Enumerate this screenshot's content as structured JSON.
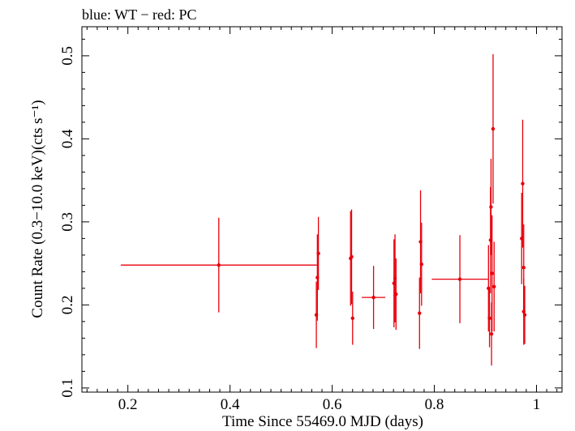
{
  "chart_data": {
    "type": "scatter",
    "title": "blue: WT − red: PC",
    "xlabel": "Time Since 55469.0 MJD (days)",
    "ylabel": "Count Rate (0.3−10.0 keV)(cts s⁻¹)",
    "xlim": [
      0.11,
      1.05
    ],
    "ylim": [
      0.095,
      0.535
    ],
    "xticks": [
      "0.2",
      "0.4",
      "0.6",
      "0.8",
      "1"
    ],
    "yticks": [
      "0.1",
      "0.2",
      "0.3",
      "0.4",
      "0.5"
    ],
    "grid": false,
    "series": [
      {
        "color": "#e8000b",
        "points": [
          {
            "x": 0.378,
            "y": 0.248,
            "xerr": 0.192,
            "yerr": 0.057
          },
          {
            "x": 0.569,
            "y": 0.188,
            "xerr": 0.002,
            "yerr": 0.04
          },
          {
            "x": 0.571,
            "y": 0.233,
            "xerr": 0.002,
            "yerr": 0.052
          },
          {
            "x": 0.573,
            "y": 0.262,
            "xerr": 0.002,
            "yerr": 0.044
          },
          {
            "x": 0.636,
            "y": 0.256,
            "xerr": 0.002,
            "yerr": 0.057
          },
          {
            "x": 0.638,
            "y": 0.258,
            "xerr": 0.002,
            "yerr": 0.057
          },
          {
            "x": 0.64,
            "y": 0.184,
            "xerr": 0.002,
            "yerr": 0.032
          },
          {
            "x": 0.681,
            "y": 0.209,
            "xerr": 0.023,
            "yerr": 0.038
          },
          {
            "x": 0.721,
            "y": 0.226,
            "xerr": 0.002,
            "yerr": 0.053
          },
          {
            "x": 0.723,
            "y": 0.232,
            "xerr": 0.002,
            "yerr": 0.053
          },
          {
            "x": 0.725,
            "y": 0.213,
            "xerr": 0.002,
            "yerr": 0.043
          },
          {
            "x": 0.771,
            "y": 0.19,
            "xerr": 0.002,
            "yerr": 0.043
          },
          {
            "x": 0.773,
            "y": 0.276,
            "xerr": 0.002,
            "yerr": 0.062
          },
          {
            "x": 0.775,
            "y": 0.249,
            "xerr": 0.002,
            "yerr": 0.05
          },
          {
            "x": 0.85,
            "y": 0.231,
            "xerr": 0.055,
            "yerr": 0.053
          },
          {
            "x": 0.906,
            "y": 0.22,
            "xerr": 0.002,
            "yerr": 0.052
          },
          {
            "x": 0.908,
            "y": 0.184,
            "xerr": 0.002,
            "yerr": 0.035
          },
          {
            "x": 0.91,
            "y": 0.278,
            "xerr": 0.002,
            "yerr": 0.064
          },
          {
            "x": 0.911,
            "y": 0.318,
            "xerr": 0.002,
            "yerr": 0.058
          },
          {
            "x": 0.912,
            "y": 0.165,
            "xerr": 0.002,
            "yerr": 0.038
          },
          {
            "x": 0.913,
            "y": 0.238,
            "xerr": 0.002,
            "yerr": 0.07
          },
          {
            "x": 0.915,
            "y": 0.412,
            "xerr": 0.002,
            "yerr": 0.09
          },
          {
            "x": 0.917,
            "y": 0.222,
            "xerr": 0.002,
            "yerr": 0.054
          },
          {
            "x": 0.971,
            "y": 0.28,
            "xerr": 0.002,
            "yerr": 0.055
          },
          {
            "x": 0.973,
            "y": 0.346,
            "xerr": 0.002,
            "yerr": 0.077
          },
          {
            "x": 0.975,
            "y": 0.245,
            "xerr": 0.002,
            "yerr": 0.052
          },
          {
            "x": 0.975,
            "y": 0.192,
            "xerr": 0.002,
            "yerr": 0.04
          },
          {
            "x": 0.977,
            "y": 0.188,
            "xerr": 0.002,
            "yerr": 0.035
          }
        ]
      }
    ]
  }
}
